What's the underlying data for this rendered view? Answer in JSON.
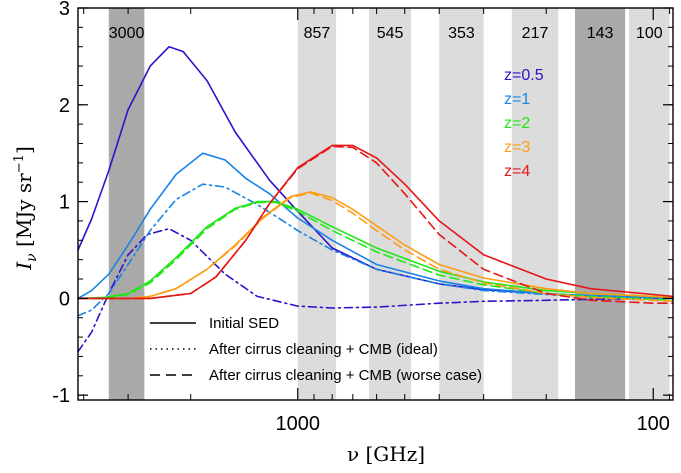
{
  "chart_data": {
    "type": "line",
    "x_unit_label": "ν [GHz]",
    "ylabel": "I_ν [MJy sr⁻¹]",
    "x_scale": "log (frequency decreasing to the right)",
    "xlim": [
      4150,
      88
    ],
    "ylim": [
      -1.05,
      3.0
    ],
    "x_ticks": [
      {
        "value": 1000,
        "label": "1000"
      },
      {
        "value": 100,
        "label": "100"
      }
    ],
    "y_ticks": [
      {
        "value": 3,
        "label": "3"
      },
      {
        "value": 2,
        "label": "2"
      },
      {
        "value": 1,
        "label": "1"
      },
      {
        "value": 0,
        "label": "0"
      },
      {
        "value": -1,
        "label": "-1"
      }
    ],
    "grid": false,
    "bands": [
      {
        "label": "3000",
        "lo": 2700,
        "hi": 3400,
        "shade": "dark"
      },
      {
        "label": "857",
        "lo": 780,
        "hi": 1000,
        "shade": "light"
      },
      {
        "label": "545",
        "lo": 480,
        "hi": 630,
        "shade": "light"
      },
      {
        "label": "353",
        "lo": 300,
        "hi": 400,
        "shade": "light"
      },
      {
        "label": "217",
        "lo": 185,
        "hi": 250,
        "shade": "light"
      },
      {
        "label": "143",
        "lo": 120,
        "hi": 166,
        "shade": "dark"
      },
      {
        "label": "100",
        "lo": 90,
        "hi": 117,
        "shade": "light"
      }
    ],
    "series": [
      {
        "name": "z=0.5",
        "color": "#2c13cc",
        "solid": [
          [
            4150,
            0.5
          ],
          [
            3800,
            0.82
          ],
          [
            3400,
            1.32
          ],
          [
            3000,
            1.95
          ],
          [
            2600,
            2.4
          ],
          [
            2300,
            2.6
          ],
          [
            2100,
            2.55
          ],
          [
            1800,
            2.25
          ],
          [
            1500,
            1.72
          ],
          [
            1200,
            1.22
          ],
          [
            1000,
            0.9
          ],
          [
            800,
            0.52
          ],
          [
            600,
            0.3
          ],
          [
            400,
            0.15
          ],
          [
            300,
            0.09
          ],
          [
            200,
            0.05
          ],
          [
            150,
            0.02
          ],
          [
            100,
            0.01
          ],
          [
            88,
            0.0
          ]
        ],
        "dashdot": [
          [
            4150,
            -0.55
          ],
          [
            3800,
            -0.35
          ],
          [
            3400,
            0.05
          ],
          [
            3000,
            0.45
          ],
          [
            2650,
            0.66
          ],
          [
            2300,
            0.72
          ],
          [
            2000,
            0.6
          ],
          [
            1600,
            0.25
          ],
          [
            1300,
            0.02
          ],
          [
            1000,
            -0.08
          ],
          [
            800,
            -0.1
          ],
          [
            600,
            -0.09
          ],
          [
            400,
            -0.05
          ],
          [
            300,
            -0.03
          ],
          [
            200,
            -0.02
          ],
          [
            150,
            -0.01
          ],
          [
            100,
            0.0
          ],
          [
            88,
            0.0
          ]
        ]
      },
      {
        "name": "z=1",
        "color": "#1a83e6",
        "solid": [
          [
            4150,
            0.0
          ],
          [
            3800,
            0.08
          ],
          [
            3400,
            0.25
          ],
          [
            3000,
            0.55
          ],
          [
            2600,
            0.92
          ],
          [
            2200,
            1.28
          ],
          [
            1850,
            1.5
          ],
          [
            1600,
            1.43
          ],
          [
            1400,
            1.24
          ],
          [
            1200,
            1.08
          ],
          [
            1000,
            0.83
          ],
          [
            800,
            0.6
          ],
          [
            600,
            0.35
          ],
          [
            400,
            0.18
          ],
          [
            300,
            0.1
          ],
          [
            200,
            0.05
          ],
          [
            150,
            0.03
          ],
          [
            100,
            0.01
          ],
          [
            88,
            0.0
          ]
        ],
        "dashdot": [
          [
            4150,
            -0.18
          ],
          [
            3800,
            -0.12
          ],
          [
            3400,
            0.05
          ],
          [
            3000,
            0.35
          ],
          [
            2600,
            0.7
          ],
          [
            2200,
            1.02
          ],
          [
            1850,
            1.18
          ],
          [
            1600,
            1.15
          ],
          [
            1300,
            0.97
          ],
          [
            1100,
            0.8
          ],
          [
            1000,
            0.7
          ],
          [
            800,
            0.5
          ],
          [
            600,
            0.3
          ],
          [
            400,
            0.15
          ],
          [
            300,
            0.08
          ],
          [
            200,
            0.04
          ],
          [
            150,
            0.02
          ],
          [
            100,
            0.01
          ],
          [
            88,
            0.0
          ]
        ]
      },
      {
        "name": "z=2",
        "color": "#23e61a",
        "solid": [
          [
            4150,
            0.0
          ],
          [
            3500,
            0.01
          ],
          [
            3000,
            0.05
          ],
          [
            2600,
            0.18
          ],
          [
            2200,
            0.42
          ],
          [
            1800,
            0.74
          ],
          [
            1500,
            0.93
          ],
          [
            1300,
            1.0
          ],
          [
            1150,
            1.0
          ],
          [
            1000,
            0.92
          ],
          [
            800,
            0.74
          ],
          [
            600,
            0.52
          ],
          [
            400,
            0.28
          ],
          [
            300,
            0.17
          ],
          [
            200,
            0.08
          ],
          [
            150,
            0.05
          ],
          [
            100,
            0.02
          ],
          [
            88,
            0.01
          ]
        ],
        "dashed": [
          [
            4150,
            0.0
          ],
          [
            3500,
            0.0
          ],
          [
            3000,
            0.04
          ],
          [
            2600,
            0.16
          ],
          [
            2200,
            0.4
          ],
          [
            1800,
            0.72
          ],
          [
            1500,
            0.92
          ],
          [
            1300,
            0.99
          ],
          [
            1150,
            0.99
          ],
          [
            1000,
            0.9
          ],
          [
            800,
            0.7
          ],
          [
            600,
            0.48
          ],
          [
            400,
            0.24
          ],
          [
            300,
            0.14
          ],
          [
            200,
            0.05
          ],
          [
            150,
            0.02
          ],
          [
            100,
            -0.01
          ],
          [
            88,
            -0.02
          ]
        ]
      },
      {
        "name": "z=3",
        "color": "#ff9d12",
        "solid": [
          [
            4150,
            0.0
          ],
          [
            3000,
            0.0
          ],
          [
            2600,
            0.02
          ],
          [
            2200,
            0.1
          ],
          [
            1800,
            0.3
          ],
          [
            1500,
            0.55
          ],
          [
            1250,
            0.84
          ],
          [
            1050,
            1.05
          ],
          [
            920,
            1.1
          ],
          [
            800,
            1.04
          ],
          [
            700,
            0.92
          ],
          [
            600,
            0.75
          ],
          [
            500,
            0.55
          ],
          [
            400,
            0.35
          ],
          [
            300,
            0.21
          ],
          [
            200,
            0.1
          ],
          [
            150,
            0.05
          ],
          [
            100,
            0.02
          ],
          [
            88,
            0.01
          ]
        ],
        "dashed": [
          [
            4150,
            0.0
          ],
          [
            3000,
            0.0
          ],
          [
            2600,
            0.02
          ],
          [
            2200,
            0.1
          ],
          [
            1800,
            0.3
          ],
          [
            1500,
            0.54
          ],
          [
            1250,
            0.83
          ],
          [
            1050,
            1.04
          ],
          [
            920,
            1.09
          ],
          [
            800,
            1.01
          ],
          [
            700,
            0.88
          ],
          [
            600,
            0.7
          ],
          [
            500,
            0.5
          ],
          [
            400,
            0.3
          ],
          [
            300,
            0.16
          ],
          [
            200,
            0.05
          ],
          [
            150,
            0.01
          ],
          [
            100,
            -0.02
          ],
          [
            88,
            -0.03
          ]
        ]
      },
      {
        "name": "z=4",
        "color": "#e61717",
        "solid": [
          [
            4150,
            0.0
          ],
          [
            2600,
            0.0
          ],
          [
            2000,
            0.05
          ],
          [
            1700,
            0.22
          ],
          [
            1400,
            0.6
          ],
          [
            1200,
            0.98
          ],
          [
            1000,
            1.35
          ],
          [
            800,
            1.58
          ],
          [
            700,
            1.58
          ],
          [
            600,
            1.45
          ],
          [
            500,
            1.18
          ],
          [
            400,
            0.8
          ],
          [
            300,
            0.45
          ],
          [
            200,
            0.2
          ],
          [
            150,
            0.1
          ],
          [
            100,
            0.04
          ],
          [
            88,
            0.02
          ]
        ],
        "dashed": [
          [
            4150,
            0.0
          ],
          [
            2600,
            0.0
          ],
          [
            2000,
            0.05
          ],
          [
            1700,
            0.22
          ],
          [
            1400,
            0.6
          ],
          [
            1200,
            0.98
          ],
          [
            1000,
            1.34
          ],
          [
            800,
            1.57
          ],
          [
            700,
            1.56
          ],
          [
            600,
            1.4
          ],
          [
            500,
            1.08
          ],
          [
            400,
            0.66
          ],
          [
            300,
            0.3
          ],
          [
            200,
            0.05
          ],
          [
            150,
            -0.02
          ],
          [
            100,
            -0.05
          ],
          [
            88,
            -0.05
          ]
        ]
      }
    ],
    "legend": [
      {
        "style": "solid",
        "label": "Initial SED"
      },
      {
        "style": "dotted",
        "label": "After cirrus cleaning + CMB (ideal)"
      },
      {
        "style": "dashed",
        "label": "After cirrus cleaning + CMB (worse case)"
      }
    ]
  }
}
